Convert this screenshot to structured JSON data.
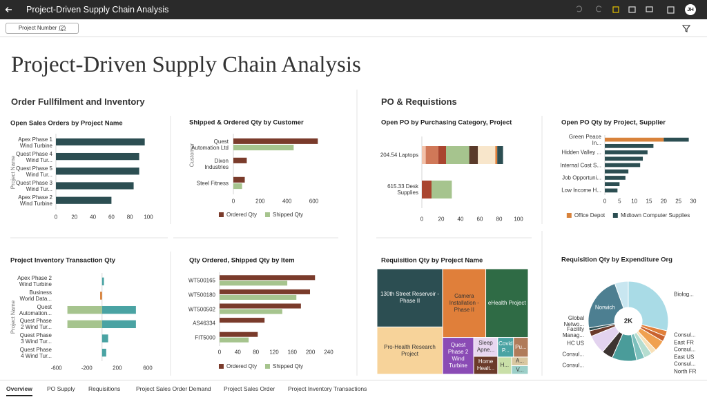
{
  "header": {
    "title": "Project-Driven Supply Chain Analysis",
    "user_initials": "JH"
  },
  "filter": {
    "label": "Project Number",
    "badge": "(2)"
  },
  "page_title": "Project-Driven Supply Chain Analysis",
  "sections": [
    "Order Fullfilment and Inventory",
    "PO & Requistions"
  ],
  "chart_data": [
    {
      "type": "bar",
      "orientation": "horizontal",
      "title": "Open Sales Orders by Project Name",
      "y_label": "Project Name",
      "categories": [
        "Apex Phase 1 Wind Turbine",
        "Quest Phase 4 Wind Tur...",
        "Quest Phase 5 Wind Tur...",
        "Quest Phase 3 Wind Tur...",
        "Apex Phase 2 Wind Turbine"
      ],
      "values": [
        96,
        90,
        90,
        84,
        60
      ],
      "color": "#2c4e52",
      "xlim": [
        0,
        100
      ],
      "xticks": [
        0,
        20,
        40,
        60,
        80,
        100
      ]
    },
    {
      "type": "bar",
      "orientation": "horizontal",
      "title": "Shipped & Ordered Qty by Customer",
      "y_label": "Customer",
      "categories": [
        "Quest Automation Ltd",
        "Dixon Industries",
        "Steel Fitness"
      ],
      "series": [
        {
          "name": "Ordered Qty",
          "color": "#7a3b2b",
          "values": [
            630,
            100,
            85
          ]
        },
        {
          "name": "Shipped Qty",
          "color": "#a6c48e",
          "values": [
            450,
            0,
            65
          ]
        }
      ],
      "xlim": [
        0,
        680
      ],
      "xticks": [
        0,
        200,
        400,
        600
      ],
      "legend": "bottom"
    },
    {
      "type": "bar",
      "orientation": "horizontal",
      "stacked": true,
      "title": "Open PO by Purchasing Category, Project",
      "categories": [
        "204.54 Laptops",
        "615.33 Desk Supplies"
      ],
      "series": [
        {
          "color": "#f2c2aa",
          "values": [
            4,
            0
          ]
        },
        {
          "color": "#d07858",
          "values": [
            13,
            0
          ]
        },
        {
          "color": "#a9452f",
          "values": [
            8,
            10
          ]
        },
        {
          "color": "#a6c48e",
          "values": [
            24,
            21
          ]
        },
        {
          "color": "#5a3a2a",
          "values": [
            9,
            0
          ]
        },
        {
          "color": "#f8e6cb",
          "values": [
            18,
            0
          ]
        },
        {
          "color": "#e07f3a",
          "values": [
            2,
            0
          ]
        },
        {
          "color": "#2c4e52",
          "values": [
            6,
            0
          ]
        }
      ],
      "xlim": [
        0,
        100
      ],
      "xticks": [
        0,
        20,
        40,
        60,
        80,
        100
      ]
    },
    {
      "type": "bar",
      "orientation": "horizontal",
      "stacked": true,
      "title": "Open PO Qty by Project, Supplier",
      "categories": [
        "Green Peace In...",
        null,
        "Hidden Valley ...",
        null,
        "Internal Cost S...",
        null,
        "Job Opportuni...",
        null,
        "Low Income H..."
      ],
      "series": [
        {
          "name": "Office Depot",
          "color": "#d8823b",
          "values": [
            20,
            0,
            0,
            0,
            0,
            0,
            0,
            0,
            0
          ]
        },
        {
          "name": "Midtown Computer Supplies",
          "color": "#2c4e52",
          "values": [
            8.5,
            16.5,
            14.5,
            12.9,
            12,
            8,
            7,
            5,
            4.3
          ]
        }
      ],
      "xlim": [
        0,
        30
      ],
      "xticks": [
        0,
        5,
        10,
        15,
        20,
        25,
        30
      ],
      "legend": "bottom"
    },
    {
      "type": "bar",
      "orientation": "horizontal",
      "stacked": true,
      "title": "Project Inventory Transaction Qty",
      "y_label": "Project Name",
      "categories": [
        "Apex Phase 2 Wind Turbine",
        "Business World Data...",
        "Quest Automation...",
        "Quest Phase 2 Wind Tur...",
        "Quest Phase 3 Wind Tur...",
        "Quest Phase 4 Wind Tur..."
      ],
      "series": [
        {
          "color": "#4aa3a3",
          "values": [
            25,
            0,
            445,
            445,
            80,
            55
          ]
        },
        {
          "color": "#a6c48e",
          "values": [
            0,
            0,
            -455,
            -455,
            0,
            0
          ]
        },
        {
          "color": "#d8823b",
          "values": [
            0,
            -25,
            0,
            0,
            0,
            0
          ]
        }
      ],
      "xlim": [
        -660,
        700
      ],
      "xticks": [
        -600,
        -200,
        200,
        600
      ]
    },
    {
      "type": "bar",
      "orientation": "horizontal",
      "title": "Qty Ordered, Shipped Qty by Item",
      "categories": [
        "WT500165",
        "WT500180",
        "WT500502",
        "AS46334",
        "FIT5000"
      ],
      "series": [
        {
          "name": "Ordered Qty",
          "color": "#7a3b2b",
          "values": [
            210,
            199,
            179,
            99,
            84
          ]
        },
        {
          "name": "Shipped Qty",
          "color": "#a6c48e",
          "values": [
            149,
            169,
            138,
            0,
            64
          ]
        }
      ],
      "xlim": [
        0,
        240
      ],
      "xticks": [
        0,
        40,
        80,
        120,
        160,
        200,
        240
      ],
      "legend": "bottom"
    },
    {
      "type": "treemap",
      "title": "Requisition Qty by Project Name",
      "categories": [
        "130th Street Reservoir - Phase II",
        "Pro-Health Research Project",
        "Camera Installation - Phase II",
        "eHealth Project",
        "Quest Phase 2 Wind Turbine",
        "Sleep Apne...",
        "Home Healt...",
        "Covid P...",
        "Pu...",
        "H...",
        "A...",
        "V..."
      ],
      "values": [
        80,
        65,
        62,
        61,
        24,
        9.5,
        9,
        6.5,
        6,
        5,
        3,
        3
      ],
      "colors": [
        "#2c4e52",
        "#f7d39a",
        "#e07f3a",
        "#2f6b45",
        "#8a4bb5",
        "#e8d7f0",
        "#6b3a2a",
        "#4aa3a3",
        "#b07b5a",
        "#c9dfa8",
        "#d9c7a0",
        "#9ccfc8"
      ]
    },
    {
      "type": "pie",
      "donut": true,
      "title": "Requisition Qty by Expenditure Org",
      "center_label": "2K",
      "categories": [
        "Biolog...",
        "Consul...",
        "East FR",
        "Consul...",
        "East US",
        "Consul...",
        "North FR",
        "Consul...",
        "Consul...",
        "HC US",
        "Facility Manag...",
        "Global Netwo...",
        "Norwich",
        null
      ],
      "values": [
        580,
        45,
        45,
        90,
        45,
        65,
        65,
        200,
        90,
        155,
        45,
        25,
        445,
        110
      ],
      "colors": [
        "#a9dbe6",
        "#e07f3a",
        "#c9622f",
        "#f0a050",
        "#f7e0b8",
        "#b5ddd0",
        "#7cc0bd",
        "#4a9c9a",
        "#3d3431",
        "#e3d3ef",
        "#6b3a2a",
        "#2c4e52",
        "#4d7f91",
        "#c8e6f0"
      ]
    }
  ],
  "tabs": [
    "Overview",
    "PO Supply",
    "Requisitions",
    "Project Sales Order Demand",
    "Project Sales Order",
    "Project Inventory Transactions"
  ],
  "active_tab": 0
}
